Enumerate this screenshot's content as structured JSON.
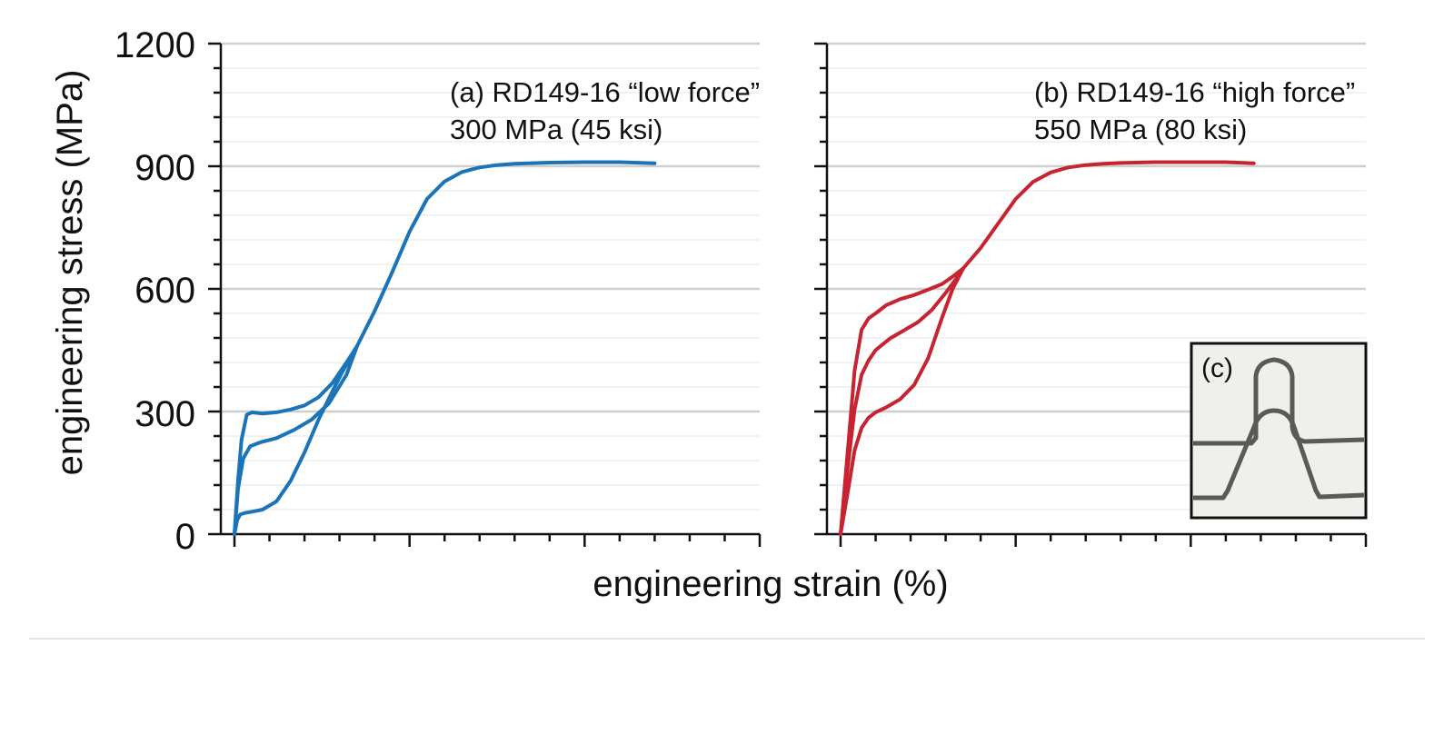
{
  "figure": {
    "xlabel": "engineering strain (%)",
    "ylabel": "engineering stress (MPa)",
    "ytick_labels": [
      "0",
      "300",
      "600",
      "900",
      "1200"
    ]
  },
  "chart_data": [
    {
      "type": "line",
      "panel": "a",
      "ylim": [
        0,
        1200
      ],
      "xlim": [
        0,
        15
      ],
      "grid": true,
      "annotation": [
        "(a) RD149-16 “low force”",
        "300 MPa (45 ksi)"
      ],
      "annotation_color": "#1b73b8",
      "series": [
        {
          "color": "#1b73b8",
          "curves": [
            {
              "x": [
                0.0,
                0.08,
                0.16,
                0.3,
                0.5,
                0.8,
                1.2,
                1.6,
                2.0,
                2.4,
                2.8,
                3.1,
                3.5
              ],
              "y": [
                0,
                35,
                48,
                52,
                55,
                60,
                80,
                130,
                200,
                280,
                350,
                400,
                460
              ]
            },
            {
              "x": [
                0.0,
                0.1,
                0.25,
                0.45,
                0.75,
                1.2,
                1.7,
                2.2,
                2.7,
                3.2,
                3.5
              ],
              "y": [
                0,
                110,
                185,
                215,
                225,
                235,
                255,
                280,
                320,
                390,
                460
              ]
            },
            {
              "x": [
                0.0,
                0.1,
                0.2,
                0.35,
                0.5,
                0.8,
                1.2,
                1.6,
                2.0,
                2.4,
                2.8,
                3.2,
                3.5
              ],
              "y": [
                0,
                130,
                230,
                292,
                298,
                295,
                298,
                305,
                315,
                335,
                370,
                420,
                460
              ]
            },
            {
              "x": [
                3.5,
                4.0,
                4.5,
                5.0,
                5.5,
                6.0,
                6.5,
                7.0,
                7.5,
                8.0,
                9.0,
                10.0,
                11.0,
                12.0
              ],
              "y": [
                460,
                545,
                640,
                740,
                820,
                863,
                886,
                897,
                903,
                906,
                909,
                910,
                910,
                907
              ]
            }
          ]
        }
      ]
    },
    {
      "type": "line",
      "panel": "b",
      "ylim": [
        0,
        1200
      ],
      "xlim": [
        0,
        15
      ],
      "grid": true,
      "annotation": [
        "(b) RD149-16 “high force”",
        "550 MPa (80 ksi)"
      ],
      "annotation_color": "#c62430",
      "inset_label": "(c)",
      "series": [
        {
          "color": "#c62430",
          "curves": [
            {
              "x": [
                0.0,
                0.2,
                0.4,
                0.6,
                0.8,
                1.0,
                1.3,
                1.7,
                2.1,
                2.5,
                2.9,
                3.2,
                3.5
              ],
              "y": [
                0,
                100,
                205,
                260,
                285,
                298,
                310,
                330,
                365,
                430,
                530,
                600,
                650
              ]
            },
            {
              "x": [
                0.0,
                0.2,
                0.4,
                0.6,
                0.8,
                1.0,
                1.4,
                1.8,
                2.2,
                2.6,
                3.0,
                3.3,
                3.5
              ],
              "y": [
                0,
                160,
                305,
                390,
                425,
                450,
                478,
                498,
                518,
                548,
                590,
                625,
                650
              ]
            },
            {
              "x": [
                0.0,
                0.2,
                0.4,
                0.6,
                0.8,
                1.0,
                1.3,
                1.7,
                2.1,
                2.5,
                2.9,
                3.2,
                3.5
              ],
              "y": [
                0,
                200,
                400,
                500,
                528,
                540,
                560,
                575,
                585,
                598,
                612,
                630,
                650
              ]
            },
            {
              "x": [
                3.5,
                4.0,
                4.5,
                5.0,
                5.5,
                6.0,
                6.5,
                7.0,
                7.5,
                8.0,
                9.0,
                10.0,
                11.0,
                11.8
              ],
              "y": [
                650,
                700,
                760,
                820,
                862,
                885,
                897,
                903,
                906,
                908,
                910,
                910,
                910,
                907
              ]
            }
          ]
        }
      ]
    }
  ]
}
